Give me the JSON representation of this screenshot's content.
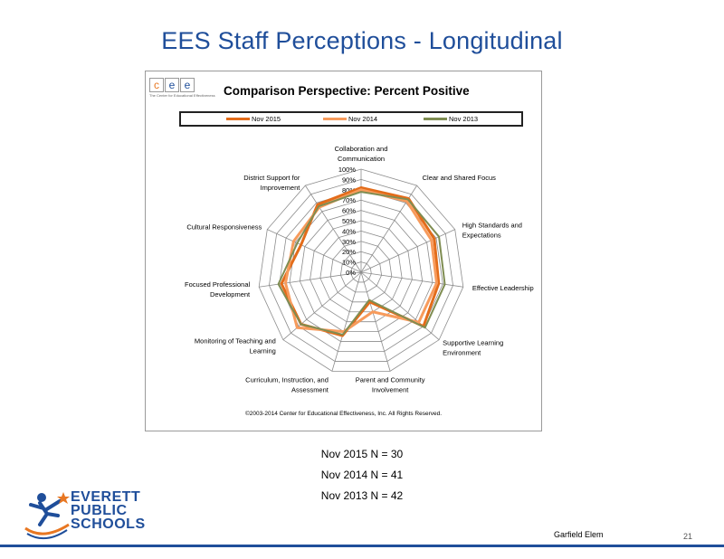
{
  "slide": {
    "title": "EES Staff Perceptions - Longitudinal",
    "school": "Garfield Elem",
    "page_number": "21",
    "n_lines": [
      "Nov 2015  N = 30",
      "Nov 2014  N = 41",
      "Nov 2013  N = 42"
    ],
    "logo_text": [
      "EVERETT",
      "PUBLIC",
      "SCHOOLS"
    ]
  },
  "cee_logo": {
    "letters": [
      "c",
      "e",
      "e"
    ],
    "tagline": "The Center for Educational Effectiveness",
    "colors": [
      "#e87722",
      "#1f4e9a",
      "#1f4e9a"
    ]
  },
  "chart_data": {
    "type": "radar",
    "title": "Comparison Perspective: Percent Positive",
    "copyright": "©2003-2014 Center for Educational Effectiveness, Inc. All Rights Reserved.",
    "categories": [
      "Collaboration and Communication",
      "Clear and Shared Focus",
      "High Standards and Expectations",
      "Effective Leadership",
      "Supportive Learning Environment",
      "Parent and Community Involvement",
      "Curriculum, Instruction, and Assessment",
      "Monitoring of Teaching and Learning",
      "Focused Professional Development",
      "Cultural Responsiveness",
      "District Support for Improvement"
    ],
    "axis_ticks": [
      "0%",
      "10%",
      "20%",
      "30%",
      "40%",
      "50%",
      "60%",
      "70%",
      "80%",
      "90%",
      "100%"
    ],
    "range": [
      0,
      100
    ],
    "grid": true,
    "legend_position": "top",
    "series": [
      {
        "name": "Nov 2015",
        "color": "#e36c1a",
        "width": 3,
        "values": [
          82,
          85,
          78,
          76,
          80,
          30,
          64,
          77,
          78,
          64,
          78
        ]
      },
      {
        "name": "Nov 2014",
        "color": "#f79b5c",
        "width": 3,
        "values": [
          80,
          82,
          75,
          74,
          74,
          40,
          60,
          82,
          74,
          72,
          75
        ]
      },
      {
        "name": "Nov 2013",
        "color": "#7f8d52",
        "width": 2,
        "values": [
          78,
          84,
          83,
          82,
          82,
          28,
          63,
          77,
          81,
          68,
          76
        ]
      }
    ]
  }
}
